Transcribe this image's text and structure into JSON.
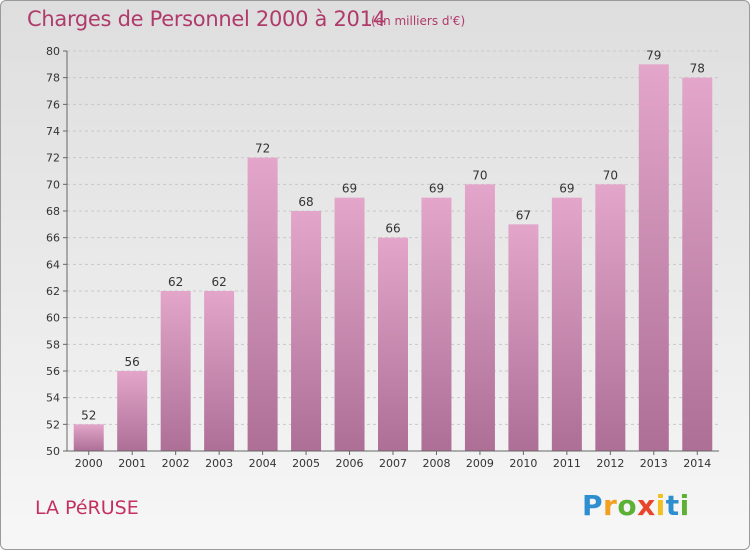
{
  "chart_data": {
    "type": "bar",
    "title": "Charges de Personnel 2000 à 2014",
    "subtitle": "(en milliers d'€)",
    "categories": [
      "2000",
      "2001",
      "2002",
      "2003",
      "2004",
      "2005",
      "2006",
      "2007",
      "2008",
      "2009",
      "2010",
      "2011",
      "2012",
      "2013",
      "2014"
    ],
    "values": [
      52,
      56,
      62,
      62,
      72,
      68,
      69,
      66,
      69,
      70,
      67,
      69,
      70,
      79,
      78
    ],
    "ylim": [
      50,
      80
    ],
    "yticks": [
      "50",
      "52",
      "54",
      "56",
      "58",
      "60",
      "62",
      "64",
      "66",
      "68",
      "70",
      "72",
      "74",
      "76",
      "78",
      "80"
    ],
    "grid": true,
    "bar_color_top": "#e3a6ca",
    "bar_color_bottom": "#ad6f96"
  },
  "footer": {
    "place": "LA PéRUSE",
    "logo_letters": [
      {
        "char": "P",
        "color": "#2d8fd0"
      },
      {
        "char": "r",
        "color": "#f2a020"
      },
      {
        "char": "o",
        "color": "#5bb035"
      },
      {
        "char": "x",
        "color": "#e8462a"
      },
      {
        "char": "i",
        "color": "#f2c020"
      },
      {
        "char": "t",
        "color": "#2d8fd0"
      },
      {
        "char": "i",
        "color": "#5bb035"
      }
    ]
  }
}
